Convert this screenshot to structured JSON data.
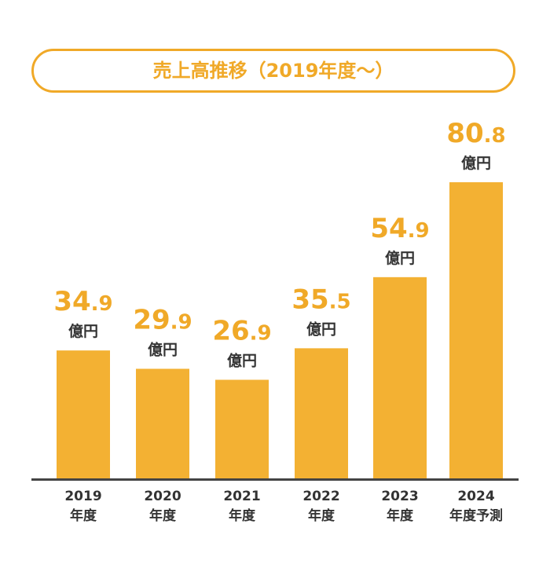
{
  "title": "売上高推移（2019年度〜）",
  "unit": "億円",
  "colors": {
    "bar": "#f3b133",
    "accent": "#f0a928",
    "axis": "#444444",
    "text": "#333333"
  },
  "chart_data": {
    "type": "bar",
    "title": "売上高推移（2019年度〜）",
    "categories": [
      [
        "2019",
        "年度"
      ],
      [
        "2020",
        "年度"
      ],
      [
        "2021",
        "年度"
      ],
      [
        "2022",
        "年度"
      ],
      [
        "2023",
        "年度"
      ],
      [
        "2024",
        "年度予測"
      ]
    ],
    "values": [
      34.9,
      29.9,
      26.9,
      35.5,
      54.9,
      80.8
    ],
    "value_labels": [
      "34.9",
      "29.9",
      "26.9",
      "35.5",
      "54.9",
      "80.8"
    ],
    "value_unit": "億円",
    "xlabel": "",
    "ylabel": "",
    "ylim": [
      0,
      80.8
    ],
    "grid": false,
    "legend": "none"
  }
}
